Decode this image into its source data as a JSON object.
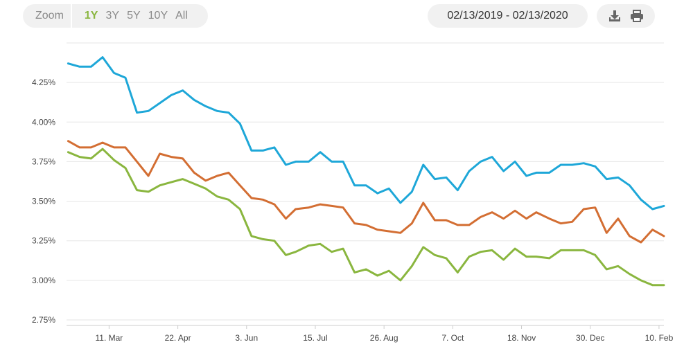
{
  "toolbar": {
    "zoom_label": "Zoom",
    "zoom_options": [
      "1Y",
      "3Y",
      "5Y",
      "10Y",
      "All"
    ],
    "active_zoom": "1Y",
    "date_range": "02/13/2019 - 02/13/2020",
    "download_icon": "download-icon",
    "print_icon": "print-icon"
  },
  "colors": {
    "accent": "#8ab63f",
    "series_blue": "#1ea7d8",
    "series_orange": "#d36e33",
    "series_green": "#8ab63f"
  },
  "chart_data": {
    "type": "line",
    "title": "",
    "xlabel": "",
    "ylabel": "",
    "ylim": [
      2.75,
      4.5
    ],
    "yticks": [
      "2.75%",
      "3.00%",
      "3.25%",
      "3.50%",
      "3.75%",
      "4.00%",
      "4.25%"
    ],
    "ytick_values": [
      2.75,
      3.0,
      3.25,
      3.5,
      3.75,
      4.0,
      4.25
    ],
    "xticks": [
      "11. Mar",
      "22. Apr",
      "3. Jun",
      "15. Jul",
      "26. Aug",
      "7. Oct",
      "18. Nov",
      "30. Dec",
      "10. Feb"
    ],
    "xtick_dates": [
      "2019-03-11",
      "2019-04-22",
      "2019-06-03",
      "2019-07-15",
      "2019-08-26",
      "2019-10-07",
      "2019-11-18",
      "2019-12-30",
      "2020-02-10"
    ],
    "xlim": [
      "2019-02-13",
      "2020-02-13"
    ],
    "grid": true,
    "legend": "none",
    "x": [
      "2019-02-14",
      "2019-02-21",
      "2019-02-28",
      "2019-03-07",
      "2019-03-14",
      "2019-03-21",
      "2019-03-28",
      "2019-04-04",
      "2019-04-11",
      "2019-04-18",
      "2019-04-25",
      "2019-05-02",
      "2019-05-09",
      "2019-05-16",
      "2019-05-23",
      "2019-05-30",
      "2019-06-06",
      "2019-06-13",
      "2019-06-20",
      "2019-06-27",
      "2019-07-03",
      "2019-07-11",
      "2019-07-18",
      "2019-07-25",
      "2019-08-01",
      "2019-08-08",
      "2019-08-15",
      "2019-08-22",
      "2019-08-29",
      "2019-09-05",
      "2019-09-12",
      "2019-09-19",
      "2019-09-26",
      "2019-10-03",
      "2019-10-10",
      "2019-10-17",
      "2019-10-24",
      "2019-10-31",
      "2019-11-07",
      "2019-11-14",
      "2019-11-21",
      "2019-11-27",
      "2019-12-05",
      "2019-12-12",
      "2019-12-19",
      "2019-12-26",
      "2020-01-02",
      "2020-01-09",
      "2020-01-16",
      "2020-01-23",
      "2020-01-30",
      "2020-02-06",
      "2020-02-13"
    ],
    "series": [
      {
        "color": "#1ea7d8",
        "values": [
          4.37,
          4.35,
          4.35,
          4.41,
          4.31,
          4.28,
          4.06,
          4.07,
          4.12,
          4.17,
          4.2,
          4.14,
          4.1,
          4.07,
          4.06,
          3.99,
          3.82,
          3.82,
          3.84,
          3.73,
          3.75,
          3.75,
          3.81,
          3.75,
          3.75,
          3.6,
          3.6,
          3.55,
          3.58,
          3.49,
          3.56,
          3.73,
          3.64,
          3.65,
          3.57,
          3.69,
          3.75,
          3.78,
          3.69,
          3.75,
          3.66,
          3.68,
          3.68,
          3.73,
          3.73,
          3.74,
          3.72,
          3.64,
          3.65,
          3.6,
          3.51,
          3.45,
          3.47
        ]
      },
      {
        "color": "#d36e33",
        "values": [
          3.88,
          3.84,
          3.84,
          3.87,
          3.84,
          3.84,
          3.75,
          3.66,
          3.8,
          3.78,
          3.77,
          3.68,
          3.63,
          3.66,
          3.68,
          3.6,
          3.52,
          3.51,
          3.48,
          3.39,
          3.45,
          3.46,
          3.48,
          3.47,
          3.46,
          3.36,
          3.35,
          3.32,
          3.31,
          3.3,
          3.36,
          3.49,
          3.38,
          3.38,
          3.35,
          3.35,
          3.4,
          3.43,
          3.39,
          3.44,
          3.39,
          3.43,
          3.39,
          3.36,
          3.37,
          3.45,
          3.46,
          3.3,
          3.39,
          3.28,
          3.24,
          3.32,
          3.28
        ]
      },
      {
        "color": "#8ab63f",
        "values": [
          3.81,
          3.78,
          3.77,
          3.83,
          3.76,
          3.71,
          3.57,
          3.56,
          3.6,
          3.62,
          3.64,
          3.61,
          3.58,
          3.53,
          3.51,
          3.45,
          3.28,
          3.26,
          3.25,
          3.16,
          3.18,
          3.22,
          3.23,
          3.18,
          3.2,
          3.05,
          3.07,
          3.03,
          3.06,
          3.0,
          3.09,
          3.21,
          3.16,
          3.14,
          3.05,
          3.15,
          3.18,
          3.19,
          3.13,
          3.2,
          3.15,
          3.15,
          3.14,
          3.19,
          3.19,
          3.19,
          3.16,
          3.07,
          3.09,
          3.04,
          3.0,
          2.97,
          2.97
        ]
      }
    ]
  }
}
